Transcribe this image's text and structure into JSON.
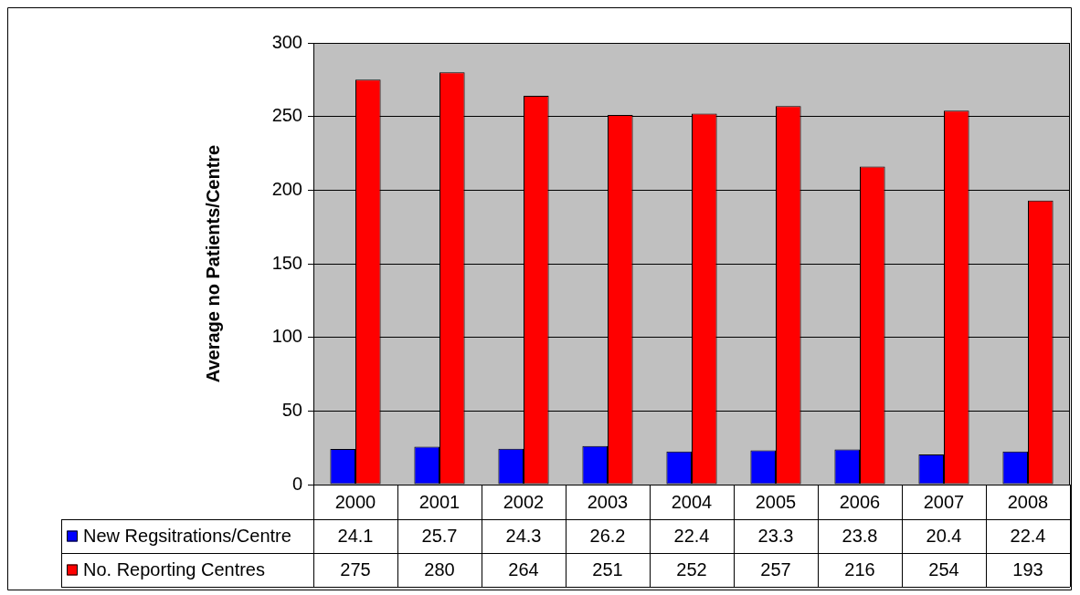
{
  "chart_data": {
    "type": "bar",
    "ylabel": "Average no Patients/Centre",
    "categories": [
      "2000",
      "2001",
      "2002",
      "2003",
      "2004",
      "2005",
      "2006",
      "2007",
      "2008"
    ],
    "series": [
      {
        "name": "New Regsitrations/Centre",
        "color": "#0000ff",
        "values": [
          24.1,
          25.7,
          24.3,
          26.2,
          22.4,
          23.3,
          23.8,
          20.4,
          22.4
        ]
      },
      {
        "name": "No. Reporting Centres",
        "color": "#ff0000",
        "values": [
          275,
          280,
          264,
          251,
          252,
          257,
          216,
          254,
          193
        ]
      }
    ],
    "ylim": [
      0,
      300
    ],
    "yticks": [
      0,
      50,
      100,
      150,
      200,
      250,
      300
    ],
    "grid": "y",
    "legend": "bottom",
    "data_labels": true
  }
}
